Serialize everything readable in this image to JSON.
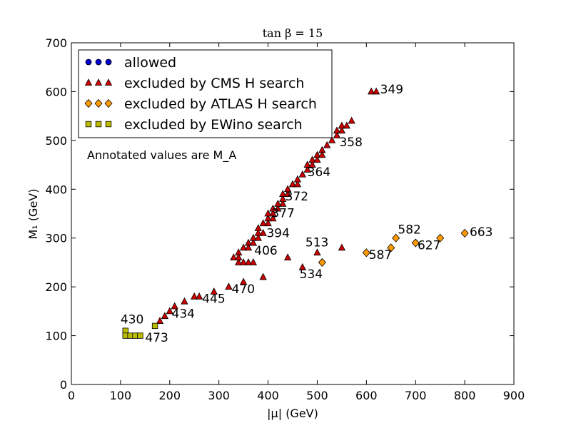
{
  "chart_data": {
    "type": "scatter",
    "title": "tan β = 15",
    "xlabel": "|μ| (GeV)",
    "ylabel": "M₁ (GeV)",
    "xlim": [
      0,
      900
    ],
    "ylim": [
      0,
      700
    ],
    "xticks": [
      "0",
      "100",
      "200",
      "300",
      "400",
      "500",
      "600",
      "700",
      "800",
      "900"
    ],
    "yticks": [
      "0",
      "100",
      "200",
      "300",
      "400",
      "500",
      "600",
      "700"
    ],
    "legend_position": "top-left",
    "note": "Annotated values are M_A",
    "colors": {
      "allowed": "#0000cc",
      "cms": "#cc0000",
      "atlas": "#ff9900",
      "ewino": "#bbbb00"
    },
    "series": [
      {
        "name": "allowed",
        "label": "allowed",
        "marker": "circle",
        "points": []
      },
      {
        "name": "cms",
        "label": "excluded by CMS H search",
        "marker": "triangle",
        "points": [
          [
            180,
            130
          ],
          [
            190,
            140
          ],
          [
            200,
            150
          ],
          [
            210,
            160
          ],
          [
            230,
            170
          ],
          [
            250,
            180
          ],
          [
            260,
            180
          ],
          [
            290,
            190
          ],
          [
            320,
            200
          ],
          [
            350,
            210
          ],
          [
            390,
            220
          ],
          [
            330,
            260
          ],
          [
            340,
            270
          ],
          [
            350,
            280
          ],
          [
            360,
            290
          ],
          [
            340,
            250
          ],
          [
            350,
            250
          ],
          [
            360,
            250
          ],
          [
            370,
            250
          ],
          [
            340,
            260
          ],
          [
            360,
            280
          ],
          [
            370,
            290
          ],
          [
            370,
            300
          ],
          [
            380,
            300
          ],
          [
            380,
            310
          ],
          [
            390,
            310
          ],
          [
            380,
            320
          ],
          [
            390,
            330
          ],
          [
            400,
            340
          ],
          [
            400,
            330
          ],
          [
            400,
            350
          ],
          [
            410,
            350
          ],
          [
            410,
            340
          ],
          [
            410,
            360
          ],
          [
            420,
            360
          ],
          [
            420,
            370
          ],
          [
            430,
            370
          ],
          [
            430,
            380
          ],
          [
            430,
            390
          ],
          [
            440,
            390
          ],
          [
            440,
            400
          ],
          [
            450,
            410
          ],
          [
            460,
            410
          ],
          [
            460,
            420
          ],
          [
            470,
            430
          ],
          [
            480,
            440
          ],
          [
            480,
            450
          ],
          [
            490,
            450
          ],
          [
            490,
            460
          ],
          [
            500,
            460
          ],
          [
            500,
            470
          ],
          [
            510,
            480
          ],
          [
            510,
            470
          ],
          [
            520,
            490
          ],
          [
            530,
            500
          ],
          [
            540,
            510
          ],
          [
            540,
            520
          ],
          [
            550,
            520
          ],
          [
            550,
            530
          ],
          [
            560,
            530
          ],
          [
            570,
            540
          ],
          [
            610,
            600
          ],
          [
            620,
            600
          ],
          [
            440,
            260
          ],
          [
            470,
            240
          ],
          [
            500,
            270
          ],
          [
            550,
            280
          ]
        ]
      },
      {
        "name": "atlas",
        "label": "excluded by ATLAS H search",
        "marker": "diamond",
        "points": [
          [
            510,
            250
          ],
          [
            600,
            270
          ],
          [
            650,
            280
          ],
          [
            660,
            300
          ],
          [
            700,
            290
          ],
          [
            750,
            300
          ],
          [
            800,
            310
          ]
        ]
      },
      {
        "name": "ewino",
        "label": "excluded by EWino search",
        "marker": "square",
        "points": [
          [
            110,
            110
          ],
          [
            110,
            100
          ],
          [
            120,
            100
          ],
          [
            130,
            100
          ],
          [
            140,
            100
          ],
          [
            170,
            120
          ]
        ]
      }
    ],
    "annotations": [
      {
        "text": "349",
        "x": 628,
        "y": 596
      },
      {
        "text": "358",
        "x": 545,
        "y": 488
      },
      {
        "text": "364",
        "x": 480,
        "y": 427
      },
      {
        "text": "372",
        "x": 435,
        "y": 377
      },
      {
        "text": "377",
        "x": 407,
        "y": 343
      },
      {
        "text": "394",
        "x": 397,
        "y": 302
      },
      {
        "text": "406",
        "x": 372,
        "y": 266
      },
      {
        "text": "513",
        "x": 476,
        "y": 283
      },
      {
        "text": "582",
        "x": 664,
        "y": 309
      },
      {
        "text": "627",
        "x": 704,
        "y": 277
      },
      {
        "text": "663",
        "x": 810,
        "y": 304
      },
      {
        "text": "587",
        "x": 605,
        "y": 257
      },
      {
        "text": "534",
        "x": 464,
        "y": 218
      },
      {
        "text": "470",
        "x": 326,
        "y": 187
      },
      {
        "text": "445",
        "x": 266,
        "y": 167
      },
      {
        "text": "434",
        "x": 204,
        "y": 137
      },
      {
        "text": "430",
        "x": 100,
        "y": 125
      },
      {
        "text": "473",
        "x": 150,
        "y": 88
      }
    ]
  }
}
